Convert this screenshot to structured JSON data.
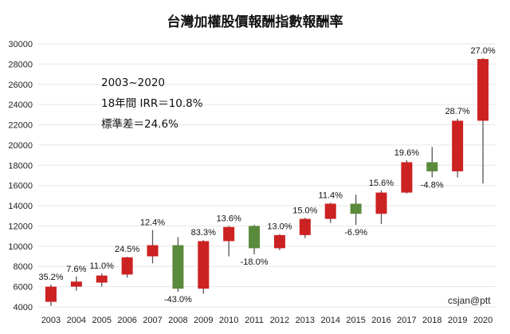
{
  "chart_data": {
    "type": "candlestick",
    "title": "台灣加權股價報酬指數報酬率",
    "xlabel": "",
    "ylabel": "",
    "ylim": [
      4000,
      30000
    ],
    "y_ticks": [
      4000,
      6000,
      8000,
      10000,
      12000,
      14000,
      16000,
      18000,
      20000,
      22000,
      24000,
      26000,
      28000,
      30000
    ],
    "grid": true,
    "legend": "none",
    "colors": {
      "up": "#cc2222",
      "down": "#5a8a3c",
      "wick": "#555555"
    },
    "categories": [
      "2003",
      "2004",
      "2005",
      "2006",
      "2007",
      "2008",
      "2009",
      "2010",
      "2011",
      "2012",
      "2013",
      "2014",
      "2015",
      "2016",
      "2017",
      "2018",
      "2019",
      "2020"
    ],
    "candles": [
      {
        "year": "2003",
        "open": 4500,
        "close": 6000,
        "high": 6200,
        "low": 4100,
        "label": "35.2%"
      },
      {
        "year": "2004",
        "open": 6000,
        "close": 6500,
        "high": 7000,
        "low": 5600,
        "label": "7.6%"
      },
      {
        "year": "2005",
        "open": 6400,
        "close": 7100,
        "high": 7300,
        "low": 6000,
        "label": "11.0%"
      },
      {
        "year": "2006",
        "open": 7200,
        "close": 8900,
        "high": 8950,
        "low": 6900,
        "label": "24.5%"
      },
      {
        "year": "2007",
        "open": 9000,
        "close": 10100,
        "high": 11600,
        "low": 8300,
        "label": "12.4%"
      },
      {
        "year": "2008",
        "open": 10100,
        "close": 5800,
        "high": 10900,
        "low": 5500,
        "label": "-43.0%"
      },
      {
        "year": "2009",
        "open": 5800,
        "close": 10500,
        "high": 10600,
        "low": 5300,
        "label": "83.3%"
      },
      {
        "year": "2010",
        "open": 10500,
        "close": 11900,
        "high": 12000,
        "low": 9000,
        "label": "13.6%"
      },
      {
        "year": "2011",
        "open": 12000,
        "close": 9800,
        "high": 12100,
        "low": 9200,
        "label": "-18.0%"
      },
      {
        "year": "2012",
        "open": 9800,
        "close": 11100,
        "high": 11200,
        "low": 9600,
        "label": "13.0%"
      },
      {
        "year": "2013",
        "open": 11100,
        "close": 12700,
        "high": 12800,
        "low": 10800,
        "label": "15.0%"
      },
      {
        "year": "2014",
        "open": 12700,
        "close": 14200,
        "high": 14300,
        "low": 12300,
        "label": "11.4%"
      },
      {
        "year": "2015",
        "open": 14200,
        "close": 13200,
        "high": 15100,
        "low": 12100,
        "label": "-6.9%"
      },
      {
        "year": "2016",
        "open": 13200,
        "close": 15300,
        "high": 15500,
        "low": 12200,
        "label": "15.6%"
      },
      {
        "year": "2017",
        "open": 15300,
        "close": 18300,
        "high": 18500,
        "low": 15200,
        "label": "19.6%"
      },
      {
        "year": "2018",
        "open": 18300,
        "close": 17400,
        "high": 19800,
        "low": 16800,
        "label": "-4.8%"
      },
      {
        "year": "2019",
        "open": 17400,
        "close": 22400,
        "high": 22600,
        "low": 16800,
        "label": "28.7%"
      },
      {
        "year": "2020",
        "open": 22400,
        "close": 28500,
        "high": 28600,
        "low": 16200,
        "label": "27.0%"
      }
    ],
    "annotations": [
      "2003~2020",
      "18年間 IRR＝10.8%",
      "標準差＝24.6%"
    ],
    "credit": "csjan@ptt"
  }
}
